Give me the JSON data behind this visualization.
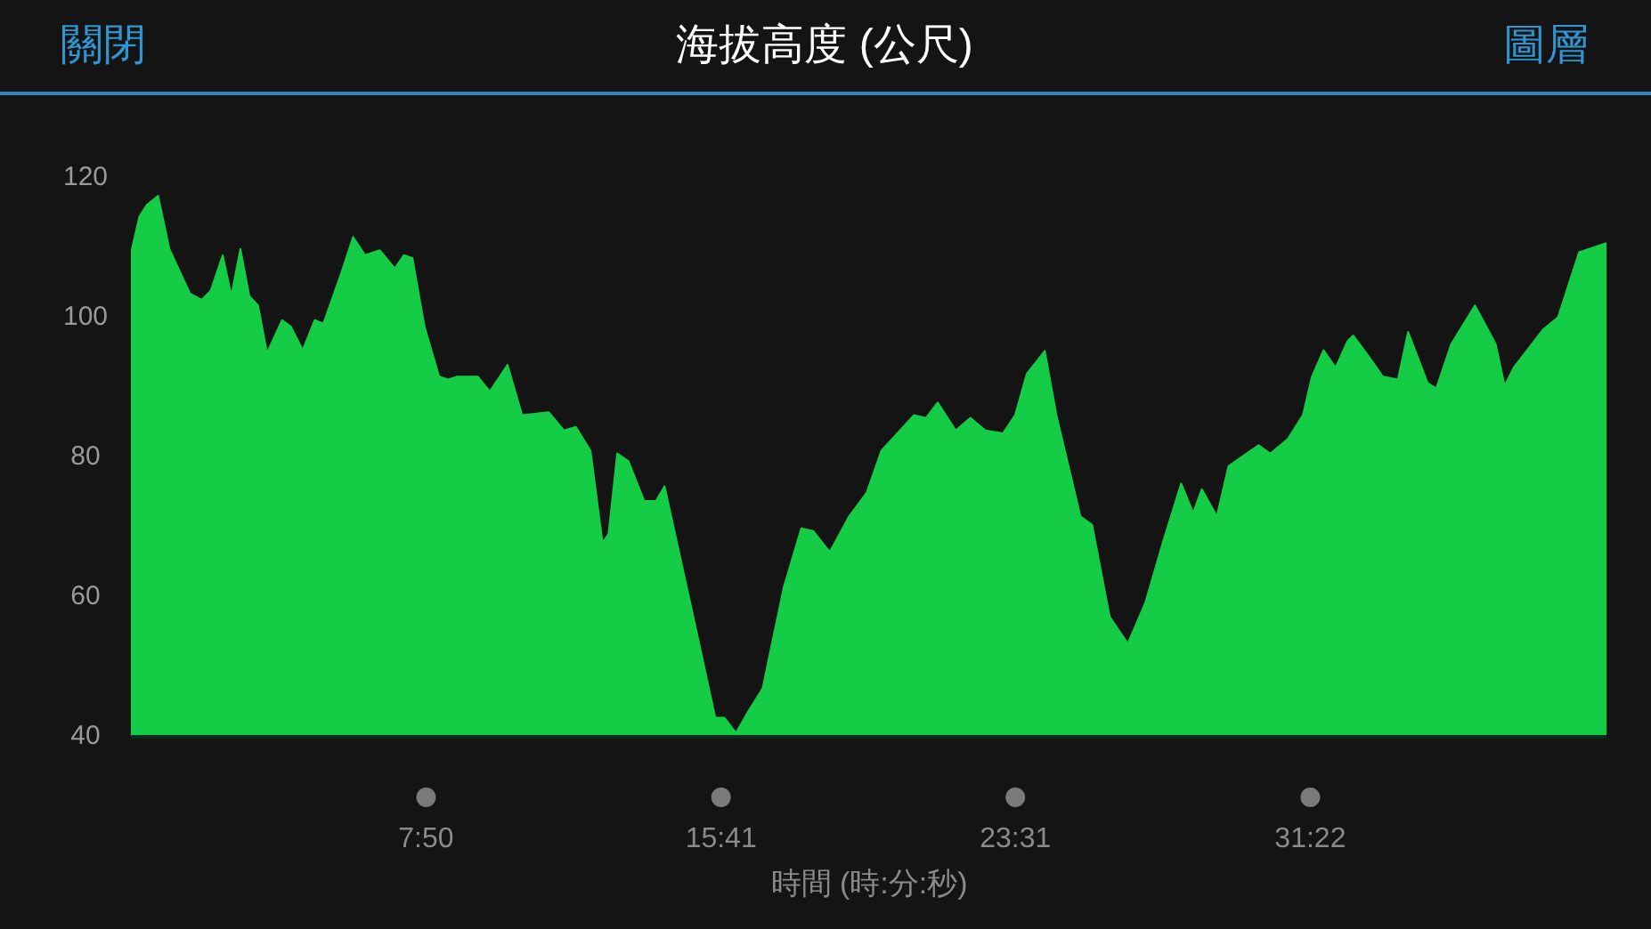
{
  "chart_data": {
    "type": "area",
    "title": "海拔高度 (公尺)",
    "xlabel": "時間 (時:分:秒)",
    "annotations": [
      "關閉",
      "圖層"
    ],
    "color": "#14cc45",
    "xlim": [
      0,
      39.25
    ],
    "ylim": [
      40,
      120
    ],
    "xticks": [
      {
        "value": 7.833,
        "label": "7:50"
      },
      {
        "value": 15.683,
        "label": "15:41"
      },
      {
        "value": 23.517,
        "label": "23:31"
      },
      {
        "value": 31.367,
        "label": "31:22"
      }
    ],
    "yticks": [
      40,
      60,
      80,
      100,
      120
    ],
    "marker": "none",
    "x": [
      0,
      0.2,
      0.4,
      0.7,
      1.0,
      1.55,
      1.86,
      2.1,
      2.42,
      2.65,
      2.89,
      3.13,
      3.36,
      3.6,
      4.0,
      4.23,
      4.55,
      4.87,
      5.1,
      5.58,
      5.89,
      6.21,
      6.6,
      7.0,
      7.24,
      7.47,
      7.79,
      8.18,
      8.42,
      8.66,
      9.21,
      9.53,
      10.0,
      10.39,
      11.1,
      11.5,
      11.82,
      12.21,
      12.53,
      12.69,
      12.92,
      13.22,
      13.64,
      13.95,
      14.18,
      14.98,
      15.53,
      15.77,
      16.08,
      16.4,
      16.79,
      17.35,
      17.82,
      18.14,
      18.58,
      19.09,
      19.56,
      19.95,
      20.82,
      21.14,
      21.45,
      21.93,
      22.32,
      22.72,
      23.19,
      23.51,
      23.82,
      24.3,
      24.61,
      25.25,
      25.56,
      26.03,
      26.51,
      26.98,
      27.46,
      27.93,
      28.25,
      28.48,
      28.88,
      29.19,
      29.99,
      30.3,
      30.77,
      31.17,
      31.41,
      31.72,
      32.04,
      32.36,
      32.51,
      32.91,
      33.3,
      33.7,
      33.97,
      34.49,
      34.72,
      35.12,
      35.75,
      36.3,
      36.54,
      36.78,
      37.57,
      37.96,
      38.52,
      39.23
    ],
    "values": [
      109.5,
      114.2,
      115.9,
      117.2,
      109.6,
      103.2,
      102.3,
      103.6,
      108.7,
      102.9,
      109.6,
      102.8,
      101.5,
      94.7,
      99.4,
      98.5,
      95.1,
      99.4,
      98.9,
      106.2,
      111.3,
      108.7,
      109.4,
      106.8,
      108.7,
      108.3,
      98.5,
      91.3,
      90.9,
      91.3,
      91.3,
      89.2,
      93.0,
      85.8,
      86.2,
      83.6,
      84.1,
      80.7,
      67.5,
      68.8,
      80.3,
      79.2,
      73.5,
      73.5,
      75.6,
      56.1,
      42.5,
      42.5,
      40.3,
      43.3,
      46.7,
      61.1,
      69.6,
      69.2,
      66.2,
      71.3,
      74.7,
      80.7,
      85.8,
      85.4,
      87.6,
      83.6,
      85.4,
      83.6,
      83.2,
      85.8,
      91.7,
      95.0,
      85.8,
      71.3,
      70.1,
      56.9,
      53.1,
      59.0,
      67.9,
      76.0,
      71.8,
      75.2,
      71.3,
      78.5,
      81.5,
      80.3,
      82.4,
      85.8,
      91.3,
      95.1,
      92.6,
      96.4,
      97.2,
      94.3,
      91.3,
      90.9,
      97.7,
      90.4,
      89.6,
      96.0,
      101.5,
      96.0,
      90.0,
      92.6,
      98.1,
      99.8,
      109.1,
      110.4
    ]
  }
}
